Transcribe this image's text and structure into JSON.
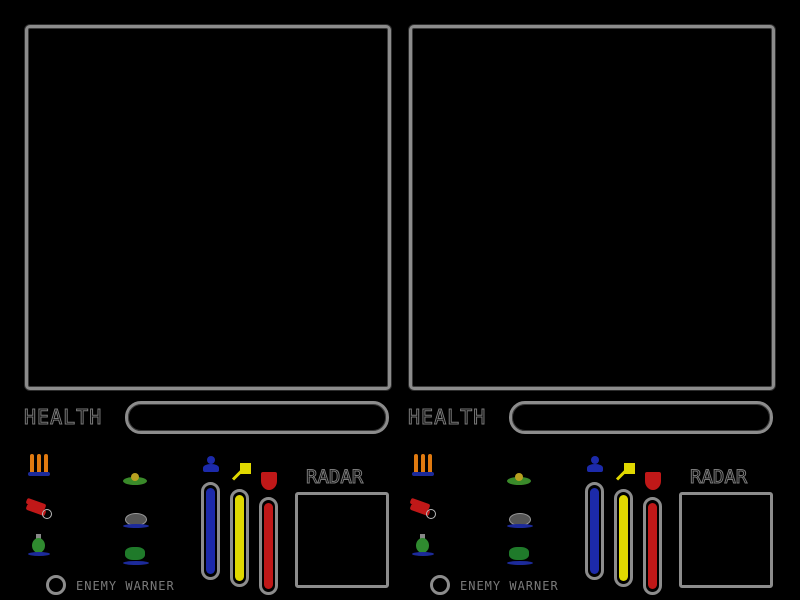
{
  "players": [
    {
      "health_label": "HEALTH",
      "radar_label": "RADAR",
      "warner_label": "ENEMY WARNER",
      "health_level": 0,
      "bars": {
        "jump": 1.0,
        "speed": 1.0,
        "armor": 1.0
      }
    },
    {
      "health_label": "HEALTH",
      "radar_label": "RADAR",
      "warner_label": "ENEMY WARNER",
      "health_level": 0,
      "bars": {
        "jump": 1.0,
        "speed": 1.0,
        "armor": 1.0
      }
    }
  ],
  "colors": {
    "frame": "#8c8c8c",
    "jump": "#1c2aaa",
    "speed": "#e0d800",
    "armor": "#c01818"
  },
  "icons": [
    "bullets-icon",
    "dynamite-icon",
    "grenade-icon",
    "landmine-icon",
    "proximity-mine-icon",
    "green-mine-icon",
    "jump-boost-icon",
    "speed-boost-icon",
    "shield-icon"
  ]
}
